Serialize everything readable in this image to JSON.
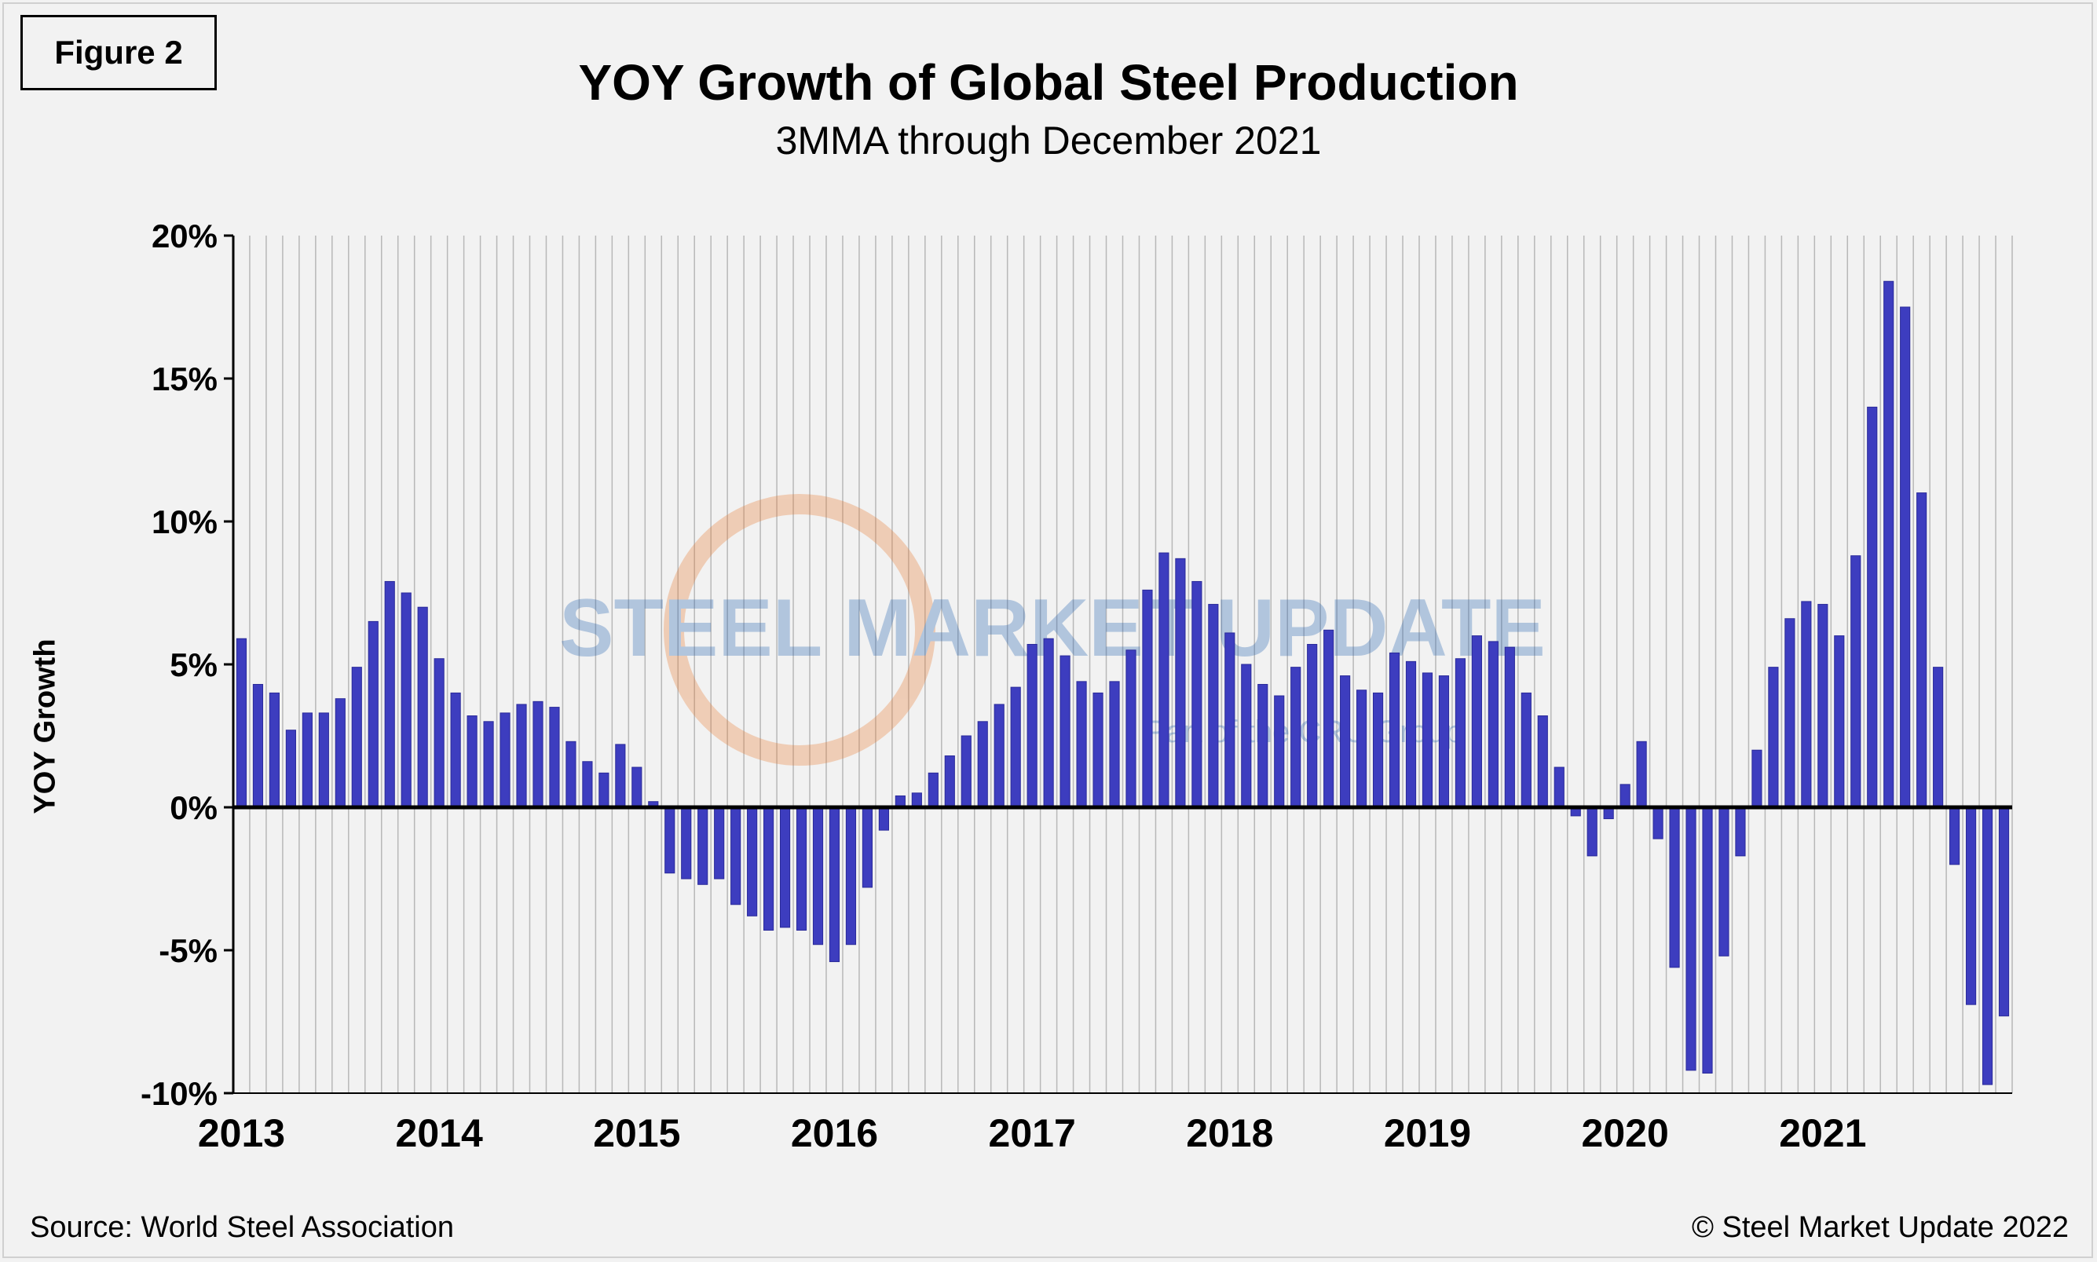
{
  "figure_label": "Figure 2",
  "source": "Source: World Steel Association",
  "copyright": "© Steel Market Update 2022",
  "watermark": {
    "brand": "STEEL MARKET UPDATE",
    "tagline": "Part of the CRU Group"
  },
  "colors": {
    "bar": "#3d3dbf",
    "bar_edge": "#2a2a9a",
    "background": "#f2f2f2",
    "grid": "#b8b8b8",
    "watermark_blue": "#1f5fb0",
    "watermark_orange": "#e8762a"
  },
  "chart_data": {
    "type": "bar",
    "title": "YOY Growth of Global Steel Production",
    "subtitle": "3MMA through December 2021",
    "xlabel": "",
    "ylabel": "YOY Growth",
    "ylim": [
      -10,
      20
    ],
    "yticks": [
      20,
      15,
      10,
      5,
      0,
      -5,
      -10
    ],
    "ytick_labels": [
      "20%",
      "15%",
      "10%",
      "5%",
      "0%",
      "-5%",
      "-10%"
    ],
    "grid": "vertical",
    "start": "2013-01",
    "year_labels": [
      "2013",
      "2014",
      "2015",
      "2016",
      "2017",
      "2018",
      "2019",
      "2020",
      "2021"
    ],
    "series": [
      {
        "name": "YOY Growth 3MMA",
        "values": [
          5.9,
          4.3,
          4.0,
          2.7,
          3.3,
          3.3,
          3.8,
          4.9,
          6.5,
          7.9,
          7.5,
          7.0,
          5.2,
          4.0,
          3.2,
          3.0,
          3.3,
          3.6,
          3.7,
          3.5,
          2.3,
          1.6,
          1.2,
          2.2,
          1.4,
          0.2,
          -2.3,
          -2.5,
          -2.7,
          -2.5,
          -3.4,
          -3.8,
          -4.3,
          -4.2,
          -4.3,
          -4.8,
          -5.4,
          -4.8,
          -2.8,
          -0.8,
          0.4,
          0.5,
          1.2,
          1.8,
          2.5,
          3.0,
          3.6,
          4.2,
          5.7,
          5.9,
          5.3,
          4.4,
          4.0,
          4.4,
          5.5,
          7.6,
          8.9,
          8.7,
          7.9,
          7.1,
          6.1,
          5.0,
          4.3,
          3.9,
          4.9,
          5.7,
          6.2,
          4.6,
          4.1,
          4.0,
          5.4,
          5.1,
          4.7,
          4.6,
          5.2,
          6.0,
          5.8,
          5.6,
          4.0,
          3.2,
          1.4,
          -0.3,
          -1.7,
          -0.4,
          0.8,
          2.3,
          -1.1,
          -5.6,
          -9.2,
          -9.3,
          -5.2,
          -1.7,
          2.0,
          4.9,
          6.6,
          7.2,
          7.1,
          6.0,
          8.8,
          14.0,
          18.4,
          17.5,
          11.0,
          4.9,
          -2.0,
          -6.9,
          -9.7,
          -7.3
        ]
      }
    ]
  }
}
